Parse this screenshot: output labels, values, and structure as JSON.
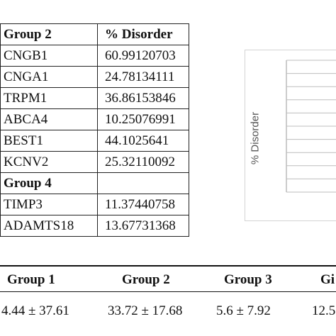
{
  "gene_table": {
    "header": {
      "group": "Group 2",
      "value": "% Disorder"
    },
    "rows": [
      {
        "gene": "CNGB1",
        "value": "60.99120703"
      },
      {
        "gene": "CNGA1",
        "value": "24.78134111"
      },
      {
        "gene": "TRPM1",
        "value": "36.86153846"
      },
      {
        "gene": "ABCA4",
        "value": "10.25076991"
      },
      {
        "gene": "BEST1",
        "value": "44.1025641"
      },
      {
        "gene": "KCNV2",
        "value": "25.32110092"
      }
    ],
    "group4_label": "Group 4",
    "group4_rows": [
      {
        "gene": "TIMP3",
        "value": "11.37440758"
      },
      {
        "gene": "ADAMTS18",
        "value": "13.67731368"
      }
    ]
  },
  "chart": {
    "ylabel": "% Disorder",
    "gridlines": 10
  },
  "summary": {
    "headers": [
      "Group 1",
      "Group 2",
      "Group 3",
      "Gi"
    ],
    "values": [
      "4.44 ± 37.61",
      "33.72 ± 17.68",
      "5.6 ± 7.92",
      "12.5"
    ]
  }
}
